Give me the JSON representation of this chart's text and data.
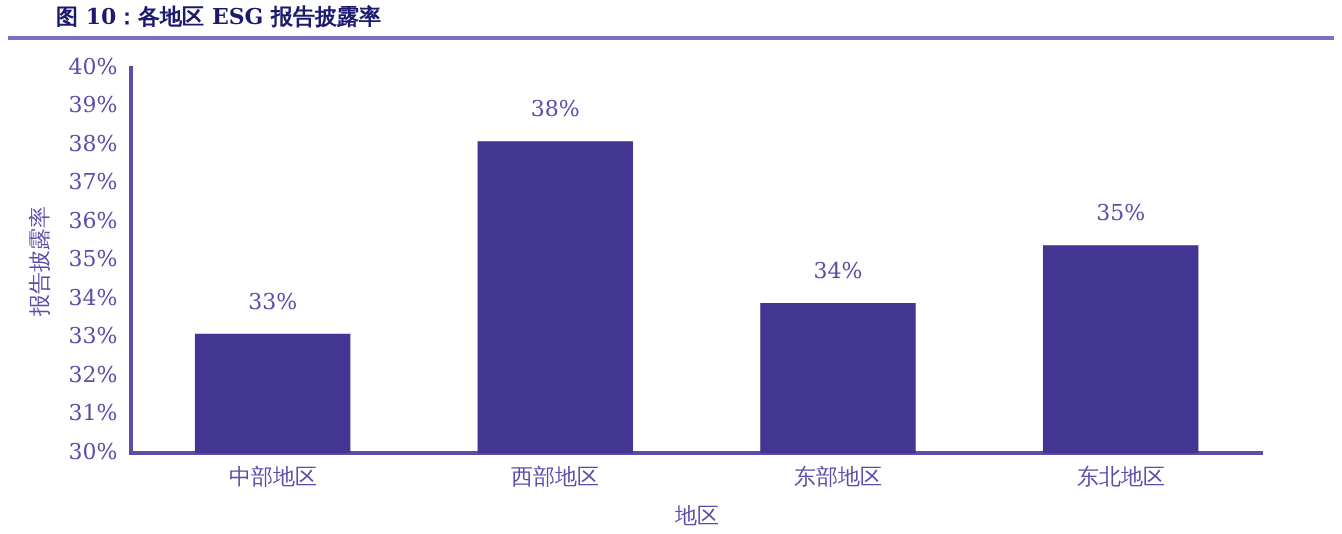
{
  "chart_data": {
    "type": "bar",
    "title": "图 10：各地区 ESG 报告披露率",
    "xlabel": "地区",
    "ylabel": "报告披露率",
    "categories": [
      "中部地区",
      "西部地区",
      "东部地区",
      "东北地区"
    ],
    "values": [
      33.1,
      38.1,
      33.9,
      35.4
    ],
    "value_labels": [
      "33%",
      "38%",
      "34%",
      "35%"
    ],
    "color": "#433592",
    "ylim": [
      30,
      40
    ],
    "yticks": [
      {
        "value": 30,
        "label": "30%"
      },
      {
        "value": 31,
        "label": "31%"
      },
      {
        "value": 32,
        "label": "32%"
      },
      {
        "value": 33,
        "label": "33%"
      },
      {
        "value": 34,
        "label": "34%"
      },
      {
        "value": 35,
        "label": "35%"
      },
      {
        "value": 36,
        "label": "36%"
      },
      {
        "value": 37,
        "label": "37%"
      },
      {
        "value": 38,
        "label": "38%"
      },
      {
        "value": 39,
        "label": "39%"
      },
      {
        "value": 40,
        "label": "40%"
      }
    ],
    "grid": false,
    "legend": false
  }
}
